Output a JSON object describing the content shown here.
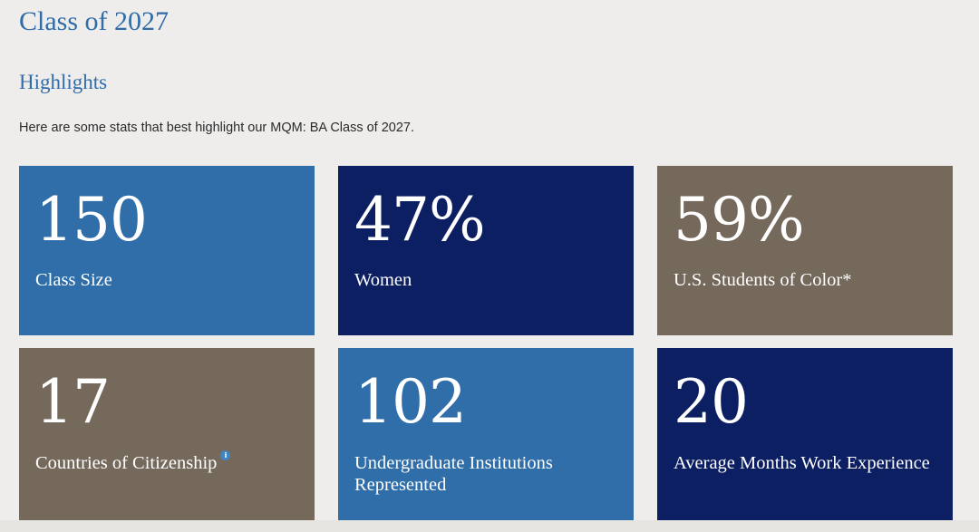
{
  "page": {
    "title": "Class of 2027",
    "section_title": "Highlights",
    "intro": "Here are some stats that best highlight our MQM: BA Class of 2027."
  },
  "colors": {
    "background": "#eeedeb",
    "heading": "#2f6ca8",
    "light_blue": "#2f6ea9",
    "navy": "#0b1f62",
    "taupe": "#75695c",
    "info_icon": "#3e86c4"
  },
  "stats": [
    {
      "value": "150",
      "label": "Class Size",
      "color": "#2f6ea9"
    },
    {
      "value": "47%",
      "label": "Women",
      "color": "#0b1f62"
    },
    {
      "value": "59%",
      "label": "U.S. Students of Color*",
      "color": "#75695c"
    },
    {
      "value": "17",
      "label": "Countries of Citizenship",
      "color": "#75695c",
      "info_icon": "info-icon",
      "info_glyph": "i"
    },
    {
      "value": "102",
      "label": "Undergraduate Institutions Represented",
      "color": "#2f6ea9"
    },
    {
      "value": "20",
      "label": "Average Months Work Experience",
      "color": "#0b1f62"
    }
  ]
}
